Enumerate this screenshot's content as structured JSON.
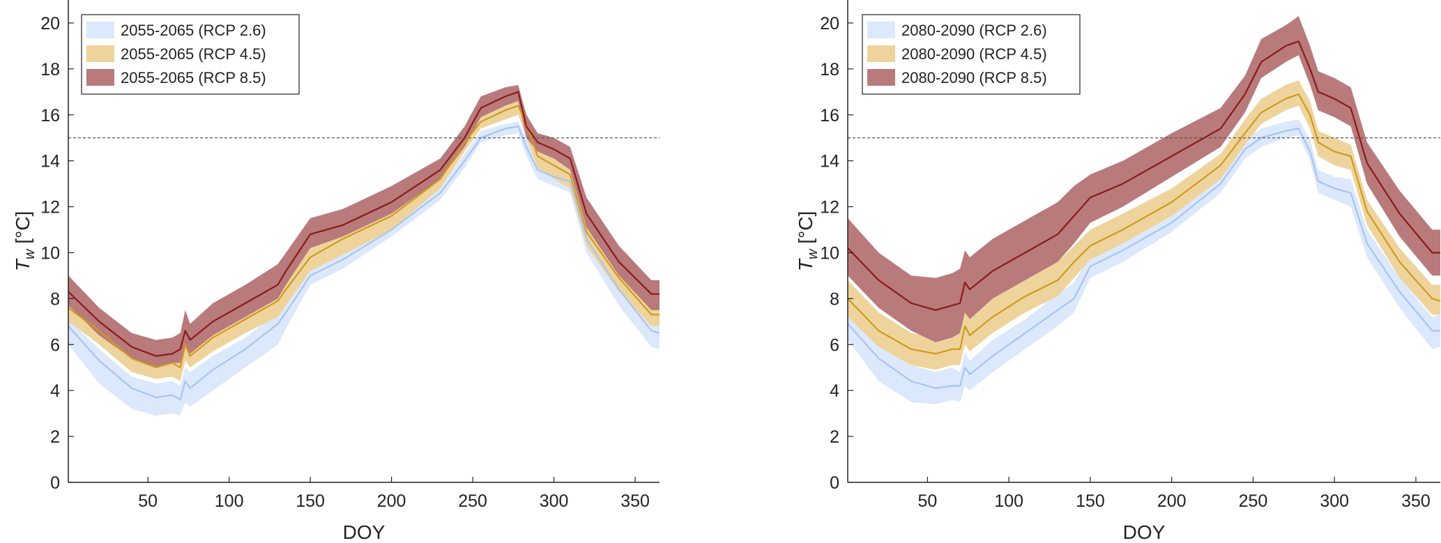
{
  "chart_data": [
    {
      "type": "area",
      "xlabel": "DOY",
      "ylabel": "T",
      "ylabel_subscript": "w",
      "ylabel_unit": "[°C]",
      "xlim": [
        1,
        365
      ],
      "ylim": [
        0,
        21
      ],
      "xticks": [
        50,
        100,
        150,
        200,
        250,
        300,
        350
      ],
      "yticks": [
        0,
        2,
        4,
        6,
        8,
        10,
        12,
        14,
        16,
        18,
        20
      ],
      "threshold": 15,
      "legend_position": "top-left",
      "series": [
        {
          "name": "2055-2065 (RCP 2.6)",
          "fill": "#dce8fc",
          "line": "#a8c4ef",
          "x": [
            1,
            20,
            40,
            55,
            65,
            70,
            73,
            76,
            90,
            110,
            130,
            135,
            150,
            170,
            200,
            230,
            245,
            255,
            270,
            278,
            283,
            290,
            300,
            310,
            320,
            340,
            360,
            365
          ],
          "mean": [
            6.8,
            5.3,
            4.1,
            3.7,
            3.8,
            3.6,
            4.4,
            4.1,
            4.9,
            5.8,
            6.9,
            7.4,
            9.0,
            9.7,
            11.0,
            12.6,
            14.0,
            15.0,
            15.4,
            15.5,
            14.6,
            13.6,
            13.3,
            13.1,
            10.6,
            8.4,
            6.6,
            6.5
          ],
          "lower": [
            6.0,
            4.3,
            3.2,
            2.9,
            3.0,
            2.9,
            3.5,
            3.3,
            4.0,
            5.0,
            6.0,
            6.7,
            8.6,
            9.3,
            10.7,
            12.3,
            13.7,
            14.8,
            15.1,
            15.2,
            14.2,
            13.2,
            12.9,
            12.6,
            10.0,
            7.7,
            5.9,
            5.8
          ],
          "upper": [
            7.1,
            5.8,
            4.6,
            4.3,
            4.4,
            4.2,
            5.0,
            4.8,
            5.5,
            6.3,
            7.4,
            7.9,
            9.4,
            10.0,
            11.3,
            12.9,
            14.3,
            15.3,
            15.6,
            15.7,
            15.0,
            14.0,
            13.7,
            13.5,
            11.1,
            8.9,
            7.0,
            6.9
          ]
        },
        {
          "name": "2055-2065 (RCP 4.5)",
          "fill": "#eed49c",
          "line": "#cf9a1e",
          "x": [
            1,
            20,
            40,
            55,
            65,
            70,
            73,
            76,
            90,
            110,
            130,
            135,
            150,
            170,
            200,
            230,
            245,
            255,
            270,
            278,
            283,
            290,
            300,
            310,
            320,
            340,
            360,
            365
          ],
          "mean": [
            7.6,
            6.6,
            5.4,
            5.0,
            5.2,
            5.0,
            6.0,
            5.5,
            6.3,
            7.1,
            7.9,
            8.4,
            9.8,
            10.6,
            11.6,
            13.2,
            14.8,
            15.7,
            16.2,
            16.4,
            15.6,
            14.2,
            13.8,
            13.4,
            10.9,
            8.9,
            7.3,
            7.3
          ],
          "lower": [
            7.0,
            6.0,
            4.8,
            4.5,
            4.6,
            4.4,
            5.3,
            5.0,
            5.7,
            6.5,
            7.2,
            7.7,
            9.2,
            9.9,
            11.0,
            12.8,
            14.4,
            15.4,
            15.8,
            16.0,
            15.0,
            13.7,
            13.2,
            12.8,
            10.3,
            8.3,
            6.8,
            6.8
          ],
          "upper": [
            8.1,
            7.1,
            5.9,
            5.5,
            5.8,
            5.5,
            6.5,
            6.1,
            6.9,
            7.8,
            8.6,
            9.1,
            10.5,
            11.2,
            12.1,
            13.7,
            15.2,
            16.1,
            16.6,
            16.8,
            16.1,
            14.7,
            14.3,
            13.9,
            11.5,
            9.5,
            7.9,
            7.8
          ]
        },
        {
          "name": "2055-2065 (RCP 8.5)",
          "fill": "#b97a7b",
          "line": "#8b1a1a",
          "x": [
            1,
            20,
            40,
            55,
            65,
            70,
            73,
            76,
            90,
            110,
            130,
            135,
            150,
            170,
            200,
            230,
            245,
            255,
            270,
            278,
            283,
            290,
            300,
            310,
            320,
            340,
            360,
            365
          ],
          "mean": [
            8.3,
            7.0,
            5.9,
            5.5,
            5.6,
            5.8,
            6.6,
            6.2,
            7.0,
            7.8,
            8.6,
            9.2,
            10.8,
            11.2,
            12.2,
            13.6,
            15.0,
            16.3,
            16.8,
            17.0,
            15.5,
            14.8,
            14.5,
            14.1,
            11.7,
            9.6,
            8.2,
            8.2
          ],
          "lower": [
            7.7,
            6.4,
            5.4,
            5.0,
            5.2,
            5.2,
            6.0,
            5.6,
            6.4,
            7.2,
            8.0,
            8.6,
            10.2,
            10.7,
            11.7,
            13.2,
            14.6,
            15.9,
            16.4,
            16.6,
            15.0,
            14.4,
            14.1,
            13.6,
            11.1,
            9.0,
            7.5,
            7.5
          ],
          "upper": [
            9.0,
            7.6,
            6.5,
            6.2,
            6.3,
            6.5,
            7.5,
            6.9,
            7.8,
            8.6,
            9.5,
            10.0,
            11.5,
            11.9,
            12.9,
            14.1,
            15.5,
            16.8,
            17.2,
            17.3,
            16.0,
            15.2,
            15.0,
            14.6,
            12.4,
            10.3,
            8.8,
            8.8
          ]
        }
      ]
    },
    {
      "type": "area",
      "xlabel": "DOY",
      "ylabel": "T",
      "ylabel_subscript": "w",
      "ylabel_unit": "[°C]",
      "xlim": [
        1,
        365
      ],
      "ylim": [
        0,
        21
      ],
      "xticks": [
        50,
        100,
        150,
        200,
        250,
        300,
        350
      ],
      "yticks": [
        0,
        2,
        4,
        6,
        8,
        10,
        12,
        14,
        16,
        18,
        20
      ],
      "threshold": 15,
      "legend_position": "top-left",
      "series": [
        {
          "name": "2080-2090 (RCP 2.6)",
          "fill": "#dce8fc",
          "line": "#a8c4ef",
          "x": [
            1,
            20,
            40,
            55,
            65,
            70,
            73,
            76,
            90,
            110,
            130,
            140,
            150,
            170,
            200,
            230,
            245,
            255,
            270,
            278,
            285,
            290,
            300,
            310,
            320,
            340,
            360,
            365
          ],
          "mean": [
            6.9,
            5.4,
            4.4,
            4.1,
            4.2,
            4.2,
            5.0,
            4.7,
            5.5,
            6.5,
            7.5,
            8.0,
            9.4,
            10.1,
            11.3,
            13.0,
            14.5,
            15.0,
            15.3,
            15.4,
            14.4,
            13.1,
            12.8,
            12.6,
            10.4,
            8.3,
            6.6,
            6.6
          ],
          "lower": [
            6.2,
            4.4,
            3.5,
            3.4,
            3.6,
            3.5,
            4.2,
            4.0,
            4.8,
            5.8,
            6.8,
            7.4,
            8.9,
            9.6,
            10.9,
            12.6,
            14.1,
            14.6,
            15.0,
            15.1,
            14.0,
            12.6,
            12.3,
            12.0,
            9.8,
            7.6,
            5.8,
            5.9
          ],
          "upper": [
            7.5,
            6.0,
            5.1,
            4.8,
            5.0,
            4.8,
            5.7,
            5.3,
            6.2,
            7.1,
            8.2,
            8.7,
            9.9,
            10.7,
            11.8,
            13.4,
            14.9,
            15.4,
            15.7,
            15.8,
            14.9,
            13.6,
            13.3,
            13.2,
            11.0,
            8.9,
            7.2,
            7.3
          ]
        },
        {
          "name": "2080-2090 (RCP 4.5)",
          "fill": "#eed49c",
          "line": "#cf9a1e",
          "x": [
            1,
            20,
            40,
            55,
            65,
            70,
            73,
            76,
            90,
            110,
            130,
            140,
            150,
            170,
            200,
            230,
            245,
            255,
            270,
            278,
            285,
            290,
            300,
            310,
            320,
            340,
            360,
            365
          ],
          "mean": [
            8.0,
            6.6,
            5.8,
            5.6,
            5.8,
            5.8,
            6.8,
            6.4,
            7.2,
            8.1,
            8.8,
            9.6,
            10.3,
            11.0,
            12.2,
            13.8,
            15.2,
            16.1,
            16.7,
            16.9,
            16.0,
            14.8,
            14.4,
            14.2,
            11.8,
            9.6,
            8.0,
            7.9
          ],
          "lower": [
            7.2,
            5.9,
            5.1,
            4.9,
            5.1,
            5.1,
            6.0,
            5.7,
            6.5,
            7.4,
            8.1,
            8.9,
            9.7,
            10.4,
            11.6,
            13.2,
            14.7,
            15.6,
            16.2,
            16.4,
            15.4,
            14.2,
            13.8,
            13.6,
            11.2,
            8.9,
            7.3,
            7.3
          ],
          "upper": [
            8.8,
            7.4,
            6.5,
            6.3,
            6.5,
            6.5,
            7.6,
            7.2,
            8.0,
            8.8,
            9.6,
            10.3,
            11.0,
            11.7,
            12.8,
            14.3,
            15.8,
            16.7,
            17.3,
            17.5,
            16.6,
            15.3,
            15.0,
            14.7,
            12.3,
            10.2,
            8.6,
            8.6
          ]
        },
        {
          "name": "2080-2090 (RCP 8.5)",
          "fill": "#b97a7b",
          "line": "#8b1a1a",
          "x": [
            1,
            20,
            40,
            55,
            65,
            70,
            73,
            76,
            90,
            110,
            130,
            140,
            150,
            170,
            200,
            230,
            245,
            255,
            270,
            278,
            285,
            290,
            300,
            310,
            320,
            340,
            360,
            365
          ],
          "mean": [
            10.2,
            8.8,
            7.8,
            7.5,
            7.7,
            7.8,
            8.7,
            8.4,
            9.2,
            10.0,
            10.8,
            11.6,
            12.4,
            13.0,
            14.2,
            15.4,
            16.9,
            18.3,
            19.0,
            19.2,
            18.0,
            17.0,
            16.7,
            16.3,
            13.9,
            11.7,
            10.0,
            10.0
          ],
          "lower": [
            9.0,
            7.6,
            6.6,
            6.1,
            6.3,
            6.5,
            7.4,
            7.1,
            8.0,
            8.8,
            9.6,
            10.4,
            11.3,
            12.0,
            13.3,
            14.6,
            16.1,
            17.6,
            18.3,
            18.6,
            17.3,
            16.2,
            15.9,
            15.5,
            13.0,
            10.7,
            9.0,
            9.0
          ],
          "upper": [
            11.5,
            10.0,
            9.0,
            8.9,
            9.1,
            9.3,
            10.1,
            9.8,
            10.6,
            11.4,
            12.2,
            12.9,
            13.4,
            14.0,
            15.2,
            16.3,
            17.7,
            19.3,
            19.9,
            20.3,
            19.0,
            17.9,
            17.6,
            17.2,
            14.8,
            12.7,
            11.0,
            11.0
          ]
        }
      ]
    }
  ]
}
